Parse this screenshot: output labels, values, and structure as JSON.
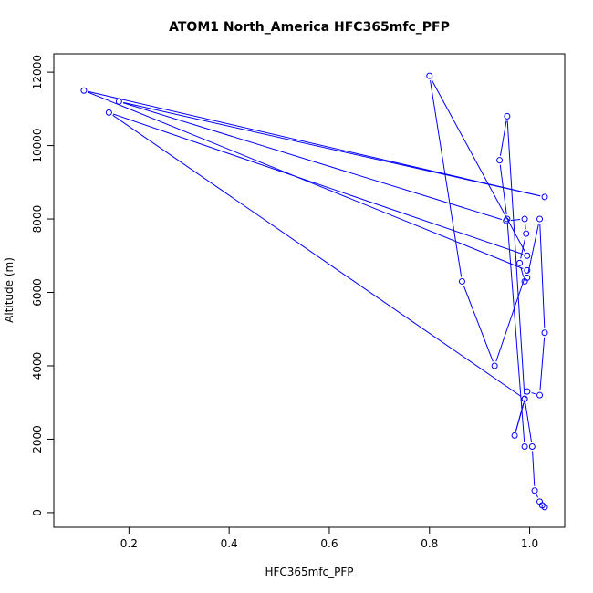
{
  "chart_data": {
    "type": "line",
    "title": "ATOM1 North_America HFC365mfc_PFP",
    "xlabel": "HFC365mfc_PFP",
    "ylabel": "Altitude (m)",
    "xlim": [
      0.05,
      1.07
    ],
    "ylim": [
      -400,
      12500
    ],
    "xticks": [
      0.2,
      0.4,
      0.6,
      0.8,
      1.0
    ],
    "xtick_labels": [
      "0.2",
      "0.4",
      "0.6",
      "0.8",
      "1.0"
    ],
    "yticks": [
      0,
      2000,
      4000,
      6000,
      8000,
      10000,
      12000
    ],
    "ytick_labels": [
      "0",
      "2000",
      "4000",
      "6000",
      "8000",
      "10000",
      "12000"
    ],
    "grid": false,
    "color": "#0000ff",
    "series": [
      {
        "x": [
          1.03,
          1.025,
          1.02,
          1.01,
          1.005,
          0.99,
          0.97,
          0.995,
          1.02,
          1.03,
          1.02,
          0.995,
          0.99,
          0.98,
          0.993,
          0.99,
          0.953,
          0.18,
          1.03,
          0.11,
          0.995,
          0.93,
          0.865,
          0.8,
          0.995,
          0.16,
          0.99,
          0.955,
          0.94,
          0.955,
          0.99
        ],
        "y": [
          150,
          200,
          300,
          600,
          1800,
          3100,
          2100,
          3300,
          3200,
          4900,
          8000,
          6400,
          6300,
          6800,
          7600,
          8000,
          7950,
          11200,
          8600,
          11500,
          6600,
          4000,
          6300,
          11900,
          7000,
          10900,
          3100,
          10800,
          9600,
          8000,
          1800
        ]
      }
    ]
  }
}
